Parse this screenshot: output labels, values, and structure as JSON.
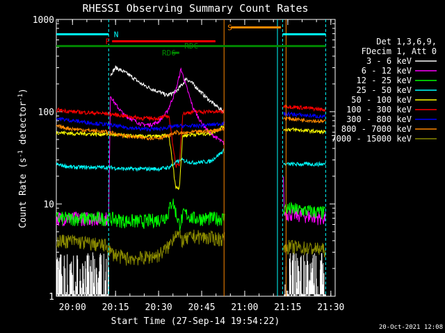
{
  "chart_data": {
    "type": "line",
    "title": "RHESSI Observing Summary Count Rates",
    "xlabel": "Start Time (27-Sep-14 19:54:22)",
    "ylabel_main": "Count Rate (s",
    "ylabel_sup1": "-1",
    "ylabel_mid": " detector",
    "ylabel_sup2": "-1",
    "ylabel_end": ")",
    "timestamp": "20-Oct-2021 12:08",
    "xlim": [
      "19:54:22",
      "21:31:30"
    ],
    "ylim": [
      1,
      1000
    ],
    "yscale": "log",
    "xticks": [
      {
        "t": 20.0,
        "label": "20:00"
      },
      {
        "t": 20.25,
        "label": "20:15"
      },
      {
        "t": 20.5,
        "label": "20:30"
      },
      {
        "t": 20.75,
        "label": "20:45"
      },
      {
        "t": 21.0,
        "label": "21:00"
      },
      {
        "t": 21.25,
        "label": "21:15"
      },
      {
        "t": 21.5,
        "label": "21:30"
      }
    ],
    "yticks": [
      {
        "v": 1,
        "label": "1"
      },
      {
        "v": 10,
        "label": "10"
      },
      {
        "v": 100,
        "label": "100"
      },
      {
        "v": 1000,
        "label": "1000"
      }
    ],
    "legend_header": [
      "Det 1,3,6,9,",
      "FDecim 1, Att 0"
    ],
    "legend_placement": "right",
    "series": [
      {
        "name": "3 - 6 keV",
        "color": "#ffffff",
        "points": [
          [
            20.22,
            250
          ],
          [
            20.25,
            300
          ],
          [
            20.3,
            270
          ],
          [
            20.35,
            235
          ],
          [
            20.4,
            200
          ],
          [
            20.45,
            180
          ],
          [
            20.5,
            165
          ],
          [
            20.55,
            150
          ],
          [
            20.6,
            165
          ],
          [
            20.64,
            200
          ],
          [
            20.66,
            230
          ],
          [
            20.7,
            200
          ],
          [
            20.75,
            160
          ],
          [
            20.8,
            130
          ],
          [
            20.85,
            110
          ],
          [
            20.88,
            100
          ]
        ]
      },
      {
        "name": "6 - 12 keV",
        "color": "#ff00ff",
        "points": [
          [
            19.9,
            7
          ],
          [
            20.21,
            7
          ],
          [
            20.22,
            150
          ],
          [
            20.25,
            120
          ],
          [
            20.3,
            92
          ],
          [
            20.35,
            82
          ],
          [
            20.4,
            73
          ],
          [
            20.45,
            72
          ],
          [
            20.5,
            78
          ],
          [
            20.55,
            100
          ],
          [
            20.6,
            170
          ],
          [
            20.63,
            290
          ],
          [
            20.66,
            190
          ],
          [
            20.7,
            110
          ],
          [
            20.75,
            75
          ],
          [
            20.8,
            58
          ],
          [
            20.85,
            50
          ],
          [
            20.88,
            45
          ],
          [
            21.22,
            45
          ],
          [
            21.23,
            8
          ],
          [
            21.47,
            7
          ]
        ]
      },
      {
        "name": "12 - 25 keV",
        "color": "#00ff00",
        "points": [
          [
            19.9,
            7
          ],
          [
            20.21,
            7
          ],
          [
            20.3,
            6.6
          ],
          [
            20.4,
            6.5
          ],
          [
            20.5,
            6.8
          ],
          [
            20.55,
            7.5
          ],
          [
            20.58,
            11
          ],
          [
            20.62,
            6
          ],
          [
            20.65,
            8
          ],
          [
            20.7,
            7
          ],
          [
            20.88,
            7
          ],
          [
            21.23,
            9
          ],
          [
            21.47,
            8
          ]
        ]
      },
      {
        "name": "25 - 50 keV",
        "color": "#00ffff",
        "points": [
          [
            19.9,
            27
          ],
          [
            20.0,
            25
          ],
          [
            20.21,
            25
          ],
          [
            20.3,
            24
          ],
          [
            20.4,
            24
          ],
          [
            20.5,
            24
          ],
          [
            20.56,
            25
          ],
          [
            20.6,
            28
          ],
          [
            20.63,
            30
          ],
          [
            20.7,
            28
          ],
          [
            20.8,
            29
          ],
          [
            20.88,
            38
          ],
          [
            21.23,
            27
          ],
          [
            21.47,
            27
          ]
        ]
      },
      {
        "name": "50 - 100 keV",
        "color": "#ffff00",
        "points": [
          [
            19.9,
            60
          ],
          [
            20.0,
            58
          ],
          [
            20.21,
            57
          ],
          [
            20.3,
            55
          ],
          [
            20.4,
            54
          ],
          [
            20.5,
            54
          ],
          [
            20.56,
            55
          ],
          [
            20.6,
            15
          ],
          [
            20.62,
            15
          ],
          [
            20.64,
            55
          ],
          [
            20.7,
            57
          ],
          [
            20.8,
            58
          ],
          [
            20.88,
            70
          ],
          [
            21.23,
            65
          ],
          [
            21.47,
            60
          ]
        ]
      },
      {
        "name": "100 - 300 keV",
        "color": "#ff0000",
        "points": [
          [
            19.9,
            105
          ],
          [
            20.0,
            100
          ],
          [
            20.21,
            95
          ],
          [
            20.3,
            90
          ],
          [
            20.4,
            85
          ],
          [
            20.5,
            85
          ],
          [
            20.56,
            90
          ],
          [
            20.6,
            26
          ],
          [
            20.62,
            26
          ],
          [
            20.64,
            95
          ],
          [
            20.7,
            100
          ],
          [
            20.8,
            100
          ],
          [
            20.88,
            100
          ],
          [
            21.23,
            115
          ],
          [
            21.47,
            105
          ]
        ]
      },
      {
        "name": "300 - 800 keV",
        "color": "#0000ff",
        "points": [
          [
            19.9,
            85
          ],
          [
            20.0,
            80
          ],
          [
            20.21,
            72
          ],
          [
            20.3,
            68
          ],
          [
            20.4,
            65
          ],
          [
            20.5,
            65
          ],
          [
            20.56,
            68
          ],
          [
            20.6,
            70
          ],
          [
            20.64,
            70
          ],
          [
            20.7,
            70
          ],
          [
            20.8,
            72
          ],
          [
            20.88,
            75
          ],
          [
            21.23,
            95
          ],
          [
            21.47,
            88
          ]
        ]
      },
      {
        "name": "800 - 7000 keV",
        "color": "#ff8800",
        "points": [
          [
            19.9,
            70
          ],
          [
            20.0,
            65
          ],
          [
            20.21,
            60
          ],
          [
            20.3,
            55
          ],
          [
            20.4,
            52
          ],
          [
            20.5,
            52
          ],
          [
            20.56,
            55
          ],
          [
            20.6,
            60
          ],
          [
            20.64,
            58
          ],
          [
            20.7,
            60
          ],
          [
            20.8,
            62
          ],
          [
            20.88,
            65
          ],
          [
            21.23,
            85
          ],
          [
            21.47,
            78
          ]
        ]
      },
      {
        "name": "7000 - 15000 keV",
        "color": "#888800",
        "points": [
          [
            19.9,
            4
          ],
          [
            20.0,
            4
          ],
          [
            20.21,
            3.5
          ],
          [
            20.22,
            3
          ],
          [
            20.3,
            2.6
          ],
          [
            20.4,
            2.6
          ],
          [
            20.5,
            2.8
          ],
          [
            20.56,
            3.5
          ],
          [
            20.6,
            5
          ],
          [
            20.64,
            4
          ],
          [
            20.7,
            4.5
          ],
          [
            20.8,
            4.3
          ],
          [
            20.88,
            4.2
          ],
          [
            21.23,
            3.5
          ],
          [
            21.47,
            3.2
          ]
        ]
      }
    ],
    "black_noise_segments": [
      [
        19.9,
        20.21
      ],
      [
        21.23,
        21.47
      ]
    ],
    "attenuator_spans": [
      {
        "t0": 20.21,
        "t1": 20.21,
        "color": "#00ffff"
      },
      {
        "t0": 21.23,
        "t1": 21.23,
        "color": "#ff8800"
      }
    ],
    "vertical_markers": [
      {
        "t": 20.21,
        "color": "#00ffff",
        "dash": true
      },
      {
        "t": 20.88,
        "color": "#ff8800",
        "dash": false
      },
      {
        "t": 21.19,
        "color": "#00ffff",
        "dash": false
      },
      {
        "t": 21.22,
        "color": "#00ffff",
        "dash": true
      },
      {
        "t": 21.24,
        "color": "#ff8800",
        "dash": false
      },
      {
        "t": 21.47,
        "color": "#00ffff",
        "dash": true
      }
    ],
    "flag_bars": [
      {
        "label": "N",
        "color": "#00ffff",
        "y": 690,
        "segments": [
          [
            19.9,
            20.21
          ],
          [
            21.22,
            21.47
          ]
        ],
        "label_at": 20.24
      },
      {
        "label": "F",
        "color": "#ff0000",
        "y": 580,
        "segments": [
          [
            20.23,
            20.83
          ]
        ],
        "label_at": 20.19
      },
      {
        "label": "S",
        "color": "#ff8800",
        "y": 820,
        "segments": [
          [
            20.92,
            21.21
          ]
        ],
        "label_at": 20.9
      },
      {
        "label": "",
        "color": "#008800",
        "y": 515,
        "segments": [
          [
            19.9,
            21.47
          ]
        ],
        "label_at": null
      },
      {
        "label": "RD6",
        "color": "#008800",
        "y": 435,
        "segments": [
          [
            20.58,
            20.62
          ]
        ],
        "label_at": 20.52
      },
      {
        "label": "RDC",
        "color": "#008800",
        "y": 520,
        "segments": [],
        "label_at": 20.65
      }
    ]
  }
}
